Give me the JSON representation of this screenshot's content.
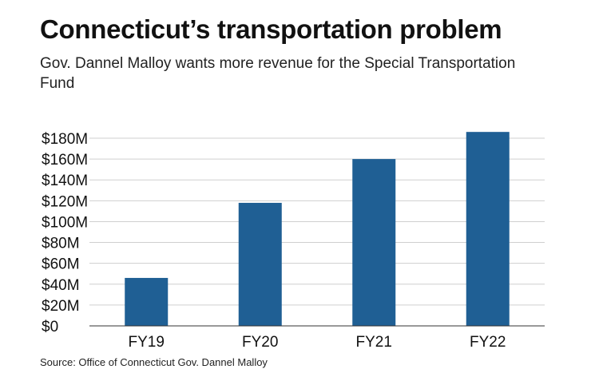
{
  "title": "Connecticut’s transportation problem",
  "subtitle": "Gov. Dannel Malloy wants more revenue for the Special Transportation Fund",
  "source": "Source: Office of Connecticut Gov. Dannel Malloy",
  "colors": {
    "bar": "#1f5f94",
    "grid": "#cfcfcf",
    "text": "#111111"
  },
  "chart_data": {
    "type": "bar",
    "title": "Connecticut’s transportation problem",
    "xlabel": "",
    "ylabel": "",
    "categories": [
      "FY19",
      "FY20",
      "FY21",
      "FY22"
    ],
    "values": [
      46,
      118,
      160,
      186
    ],
    "ylim": [
      0,
      180
    ],
    "yticks": [
      0,
      20,
      40,
      60,
      80,
      100,
      120,
      140,
      160,
      180
    ],
    "ytick_labels": [
      "$0",
      "$20M",
      "$40M",
      "$60M",
      "$80M",
      "$100M",
      "$120M",
      "$140M",
      "$160M",
      "$180M"
    ],
    "grid": true,
    "legend": "none"
  }
}
